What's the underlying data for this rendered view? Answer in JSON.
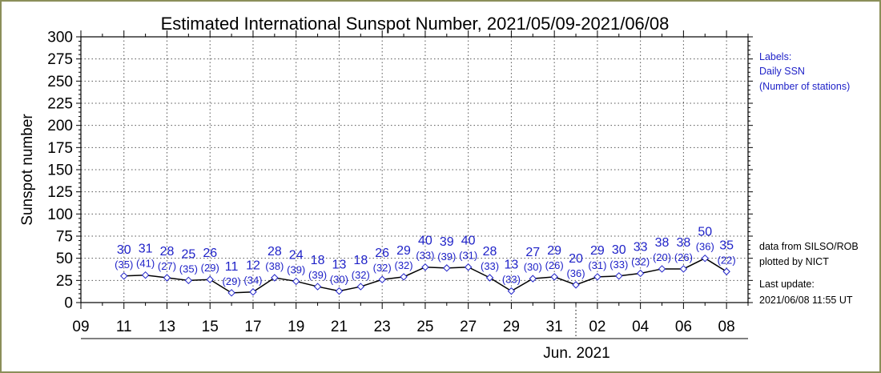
{
  "chart_data": {
    "type": "line",
    "title": "Estimated International Sunspot Number, 2021/05/09-2021/06/08",
    "ylabel": "Sunspot number",
    "ylim": [
      0,
      300
    ],
    "yticks": [
      "0",
      "25",
      "50",
      "75",
      "100",
      "125",
      "150",
      "175",
      "200",
      "225",
      "250",
      "275",
      "300"
    ],
    "xtick_labels": [
      "09",
      "11",
      "13",
      "15",
      "17",
      "19",
      "21",
      "23",
      "25",
      "27",
      "29",
      "31",
      "02",
      "04",
      "06",
      "08"
    ],
    "month_label": "Jun. 2021",
    "points": [
      {
        "date": "2021-05-11",
        "ssn": 30,
        "stations": "(35)"
      },
      {
        "date": "2021-05-12",
        "ssn": 31,
        "stations": "(41)"
      },
      {
        "date": "2021-05-13",
        "ssn": 28,
        "stations": "(27)"
      },
      {
        "date": "2021-05-14",
        "ssn": 25,
        "stations": "(35)"
      },
      {
        "date": "2021-05-15",
        "ssn": 26,
        "stations": "(29)"
      },
      {
        "date": "2021-05-16",
        "ssn": 11,
        "stations": "(29)"
      },
      {
        "date": "2021-05-17",
        "ssn": 12,
        "stations": "(34)"
      },
      {
        "date": "2021-05-18",
        "ssn": 28,
        "stations": "(38)"
      },
      {
        "date": "2021-05-19",
        "ssn": 24,
        "stations": "(39)"
      },
      {
        "date": "2021-05-20",
        "ssn": 18,
        "stations": "(39)"
      },
      {
        "date": "2021-05-21",
        "ssn": 13,
        "stations": "(30)"
      },
      {
        "date": "2021-05-22",
        "ssn": 18,
        "stations": "(32)"
      },
      {
        "date": "2021-05-23",
        "ssn": 26,
        "stations": "(32)"
      },
      {
        "date": "2021-05-24",
        "ssn": 29,
        "stations": "(32)"
      },
      {
        "date": "2021-05-25",
        "ssn": 40,
        "stations": "(33)"
      },
      {
        "date": "2021-05-26",
        "ssn": 39,
        "stations": "(39)"
      },
      {
        "date": "2021-05-27",
        "ssn": 40,
        "stations": "(31)"
      },
      {
        "date": "2021-05-28",
        "ssn": 28,
        "stations": "(33)"
      },
      {
        "date": "2021-05-29",
        "ssn": 13,
        "stations": "(33)"
      },
      {
        "date": "2021-05-30",
        "ssn": 27,
        "stations": "(30)"
      },
      {
        "date": "2021-05-31",
        "ssn": 29,
        "stations": "(26)"
      },
      {
        "date": "2021-06-01",
        "ssn": 20,
        "stations": "(36)"
      },
      {
        "date": "2021-06-02",
        "ssn": 29,
        "stations": "(31)"
      },
      {
        "date": "2021-06-03",
        "ssn": 30,
        "stations": "(33)"
      },
      {
        "date": "2021-06-04",
        "ssn": 33,
        "stations": "(32)"
      },
      {
        "date": "2021-06-05",
        "ssn": 38,
        "stations": "(20)"
      },
      {
        "date": "2021-06-06",
        "ssn": 38,
        "stations": "(26)"
      },
      {
        "date": "2021-06-07",
        "ssn": 50,
        "stations": "(36)"
      },
      {
        "date": "2021-06-08",
        "ssn": 35,
        "stations": "(22)"
      }
    ],
    "grid": true,
    "line_color": "#000000",
    "marker_color": "#1f22c8",
    "label_color": "#1f22c8"
  },
  "legend": {
    "line1": "Labels:",
    "line2": "Daily SSN",
    "line3": "(Number of stations)"
  },
  "credits": {
    "line1": "data from SILSO/ROB",
    "line2": "plotted by NICT",
    "line3": "Last update:",
    "line4": "2021/06/08 11:55 UT"
  }
}
